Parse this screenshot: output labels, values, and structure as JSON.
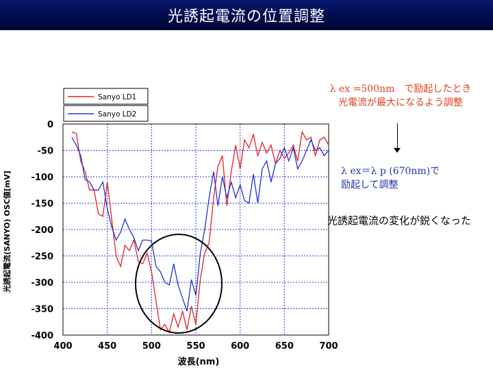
{
  "title": "光誘起電流の位置調整",
  "notes": {
    "red_line1": "λ ex =500nm　で励起したとき",
    "red_line2": "光電流が最大になるよう調整",
    "blue_line1": "λ ex＝λ p (670nm)で",
    "blue_line2": "励起して調整",
    "black_line": "光誘起電流の変化が鋭くなった"
  },
  "colors": {
    "title_bg": "#000b4a",
    "series_ld1": "#e02020",
    "series_ld2": "#2030d0",
    "grid": "#2233ee",
    "note_red": "#e0401a",
    "note_blue": "#2233a6"
  },
  "chart_data": {
    "type": "line",
    "xlabel": "波長(nm)",
    "ylabel": "光誘起電流(SANYO) OSC値[mV]",
    "xlim": [
      400,
      700
    ],
    "ylim": [
      -400,
      0
    ],
    "xticks": [
      "400",
      "450",
      "500",
      "550",
      "600",
      "650",
      "700"
    ],
    "yticks": [
      "0",
      "-50",
      "-100",
      "-150",
      "-200",
      "-250",
      "-300",
      "-350",
      "-400"
    ],
    "grid": true,
    "legend_position": "top-left",
    "series": [
      {
        "name": "Sanyo  LD1",
        "color": "#e02020",
        "x": [
          410,
          415,
          420,
          425,
          430,
          435,
          440,
          445,
          450,
          455,
          460,
          465,
          470,
          475,
          480,
          485,
          490,
          495,
          500,
          505,
          510,
          515,
          520,
          525,
          530,
          535,
          540,
          545,
          550,
          555,
          560,
          565,
          570,
          575,
          580,
          585,
          590,
          595,
          600,
          605,
          610,
          615,
          620,
          625,
          630,
          635,
          640,
          645,
          650,
          655,
          660,
          665,
          670,
          675,
          680,
          685,
          690,
          695,
          700
        ],
        "y": [
          -15,
          -18,
          -70,
          -90,
          -125,
          -125,
          -170,
          -175,
          -110,
          -180,
          -250,
          -270,
          -230,
          -240,
          -220,
          -260,
          -265,
          -245,
          -280,
          -335,
          -390,
          -380,
          -395,
          -360,
          -385,
          -355,
          -390,
          -345,
          -380,
          -295,
          -245,
          -225,
          -140,
          -80,
          -60,
          -155,
          -90,
          -40,
          -85,
          -30,
          -45,
          -20,
          -60,
          -35,
          -55,
          -40,
          -75,
          -50,
          -65,
          -55,
          -40,
          -70,
          -15,
          -30,
          -25,
          -60,
          -30,
          -25,
          -40
        ]
      },
      {
        "name": "Sanyo  LD2",
        "color": "#2030d0",
        "x": [
          410,
          415,
          420,
          425,
          430,
          435,
          440,
          445,
          450,
          455,
          460,
          465,
          470,
          475,
          480,
          485,
          490,
          495,
          500,
          505,
          510,
          515,
          520,
          525,
          530,
          535,
          540,
          545,
          550,
          555,
          560,
          565,
          570,
          575,
          580,
          585,
          590,
          595,
          600,
          605,
          610,
          615,
          620,
          625,
          630,
          635,
          640,
          645,
          650,
          655,
          660,
          665,
          670,
          675,
          680,
          685,
          690,
          695,
          700
        ],
        "y": [
          -25,
          -40,
          -60,
          -105,
          -110,
          -125,
          -125,
          -110,
          -160,
          -195,
          -220,
          -205,
          -180,
          -200,
          -215,
          -240,
          -220,
          -220,
          -222,
          -270,
          -280,
          -300,
          -305,
          -265,
          -305,
          -330,
          -355,
          -295,
          -325,
          -245,
          -200,
          -140,
          -90,
          -155,
          -100,
          -140,
          -110,
          -140,
          -115,
          -145,
          -150,
          -95,
          -150,
          -85,
          -70,
          -110,
          -75,
          -65,
          -45,
          -70,
          -45,
          -85,
          -70,
          -50,
          -30,
          -50,
          -45,
          -60,
          -50
        ]
      }
    ]
  }
}
